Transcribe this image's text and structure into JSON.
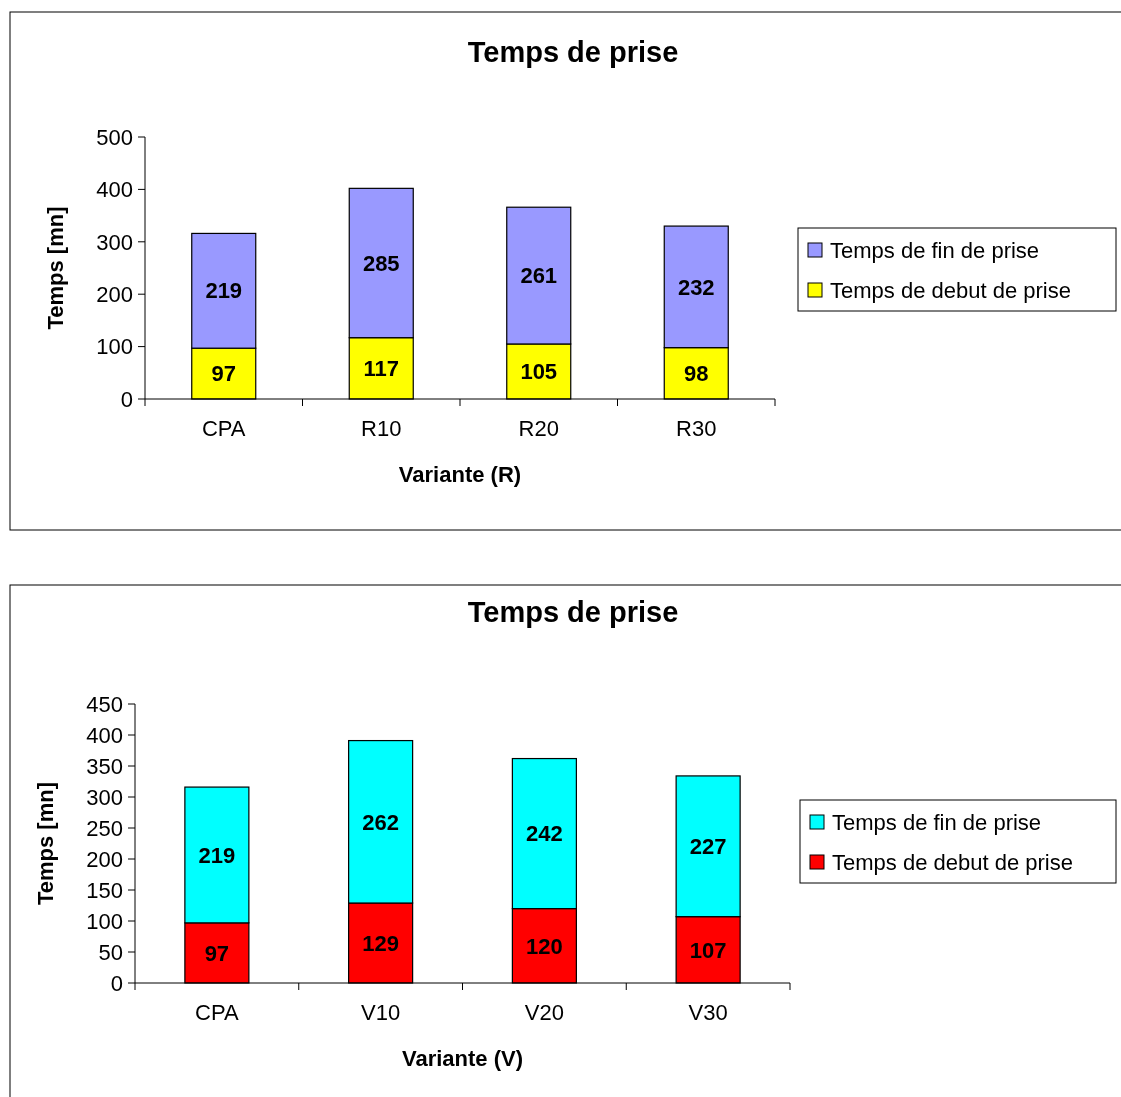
{
  "chart_data": [
    {
      "type": "bar",
      "title": "Temps de prise",
      "xlabel": "Variante (R)",
      "ylabel": "Temps [mn]",
      "categories": [
        "CPA",
        "R10",
        "R20",
        "R30"
      ],
      "stacked": true,
      "data_labels": true,
      "legend": "right",
      "grid": false,
      "ylim": [
        0,
        500
      ],
      "yticks": [
        0,
        100,
        200,
        300,
        400,
        500
      ],
      "series": [
        {
          "name": "Temps de debut de prise",
          "color": "#ffff00",
          "values": [
            97,
            117,
            105,
            98
          ]
        },
        {
          "name": "Temps de fin de prise",
          "color": "#9999ff",
          "values": [
            219,
            285,
            261,
            232
          ]
        }
      ]
    },
    {
      "type": "bar",
      "title": "Temps de prise",
      "xlabel": "Variante (V)",
      "ylabel": "Temps [mn]",
      "categories": [
        "CPA",
        "V10",
        "V20",
        "V30"
      ],
      "stacked": true,
      "data_labels": true,
      "legend": "right",
      "grid": false,
      "ylim": [
        0,
        450
      ],
      "yticks": [
        0,
        50,
        100,
        150,
        200,
        250,
        300,
        350,
        400,
        450
      ],
      "series": [
        {
          "name": "Temps de debut de prise",
          "color": "#ff0000",
          "values": [
            97,
            129,
            120,
            107
          ]
        },
        {
          "name": "Temps de fin de prise",
          "color": "#00ffff",
          "values": [
            219,
            262,
            242,
            227
          ]
        }
      ]
    }
  ]
}
